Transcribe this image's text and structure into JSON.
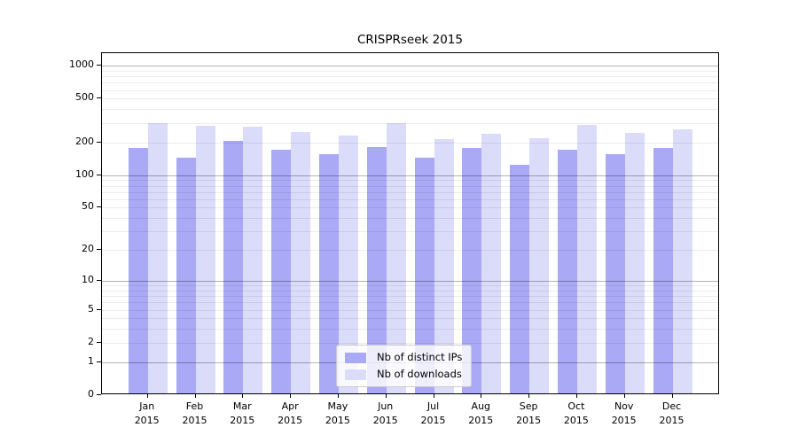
{
  "chart_data": {
    "type": "bar",
    "title": "CRISPRseek 2015",
    "year_label": "2015",
    "categories": [
      "Jan",
      "Feb",
      "Mar",
      "Apr",
      "May",
      "Jun",
      "Jul",
      "Aug",
      "Sep",
      "Oct",
      "Nov",
      "Dec"
    ],
    "series": [
      {
        "name": "Nb of distinct IPs",
        "color": "#a9a9f5",
        "values": [
          170,
          140,
          200,
          165,
          150,
          175,
          140,
          170,
          120,
          165,
          150,
          170
        ]
      },
      {
        "name": "Nb of downloads",
        "color": "#dbdbfa",
        "values": [
          290,
          270,
          265,
          240,
          220,
          290,
          205,
          230,
          210,
          280,
          235,
          255
        ]
      }
    ],
    "yscale": "log1p",
    "ylim": [
      0,
      1300
    ],
    "yticks": [
      0,
      1,
      2,
      5,
      10,
      20,
      50,
      100,
      200,
      500,
      1000
    ],
    "grid": {
      "on": true,
      "major_at": [
        1,
        10,
        100,
        1000
      ],
      "minor_per_decade": [
        2,
        3,
        4,
        5,
        6,
        7,
        8,
        9
      ]
    },
    "legend_position": "lower center",
    "axis_color": "#000000",
    "background_color": "#ffffff"
  }
}
